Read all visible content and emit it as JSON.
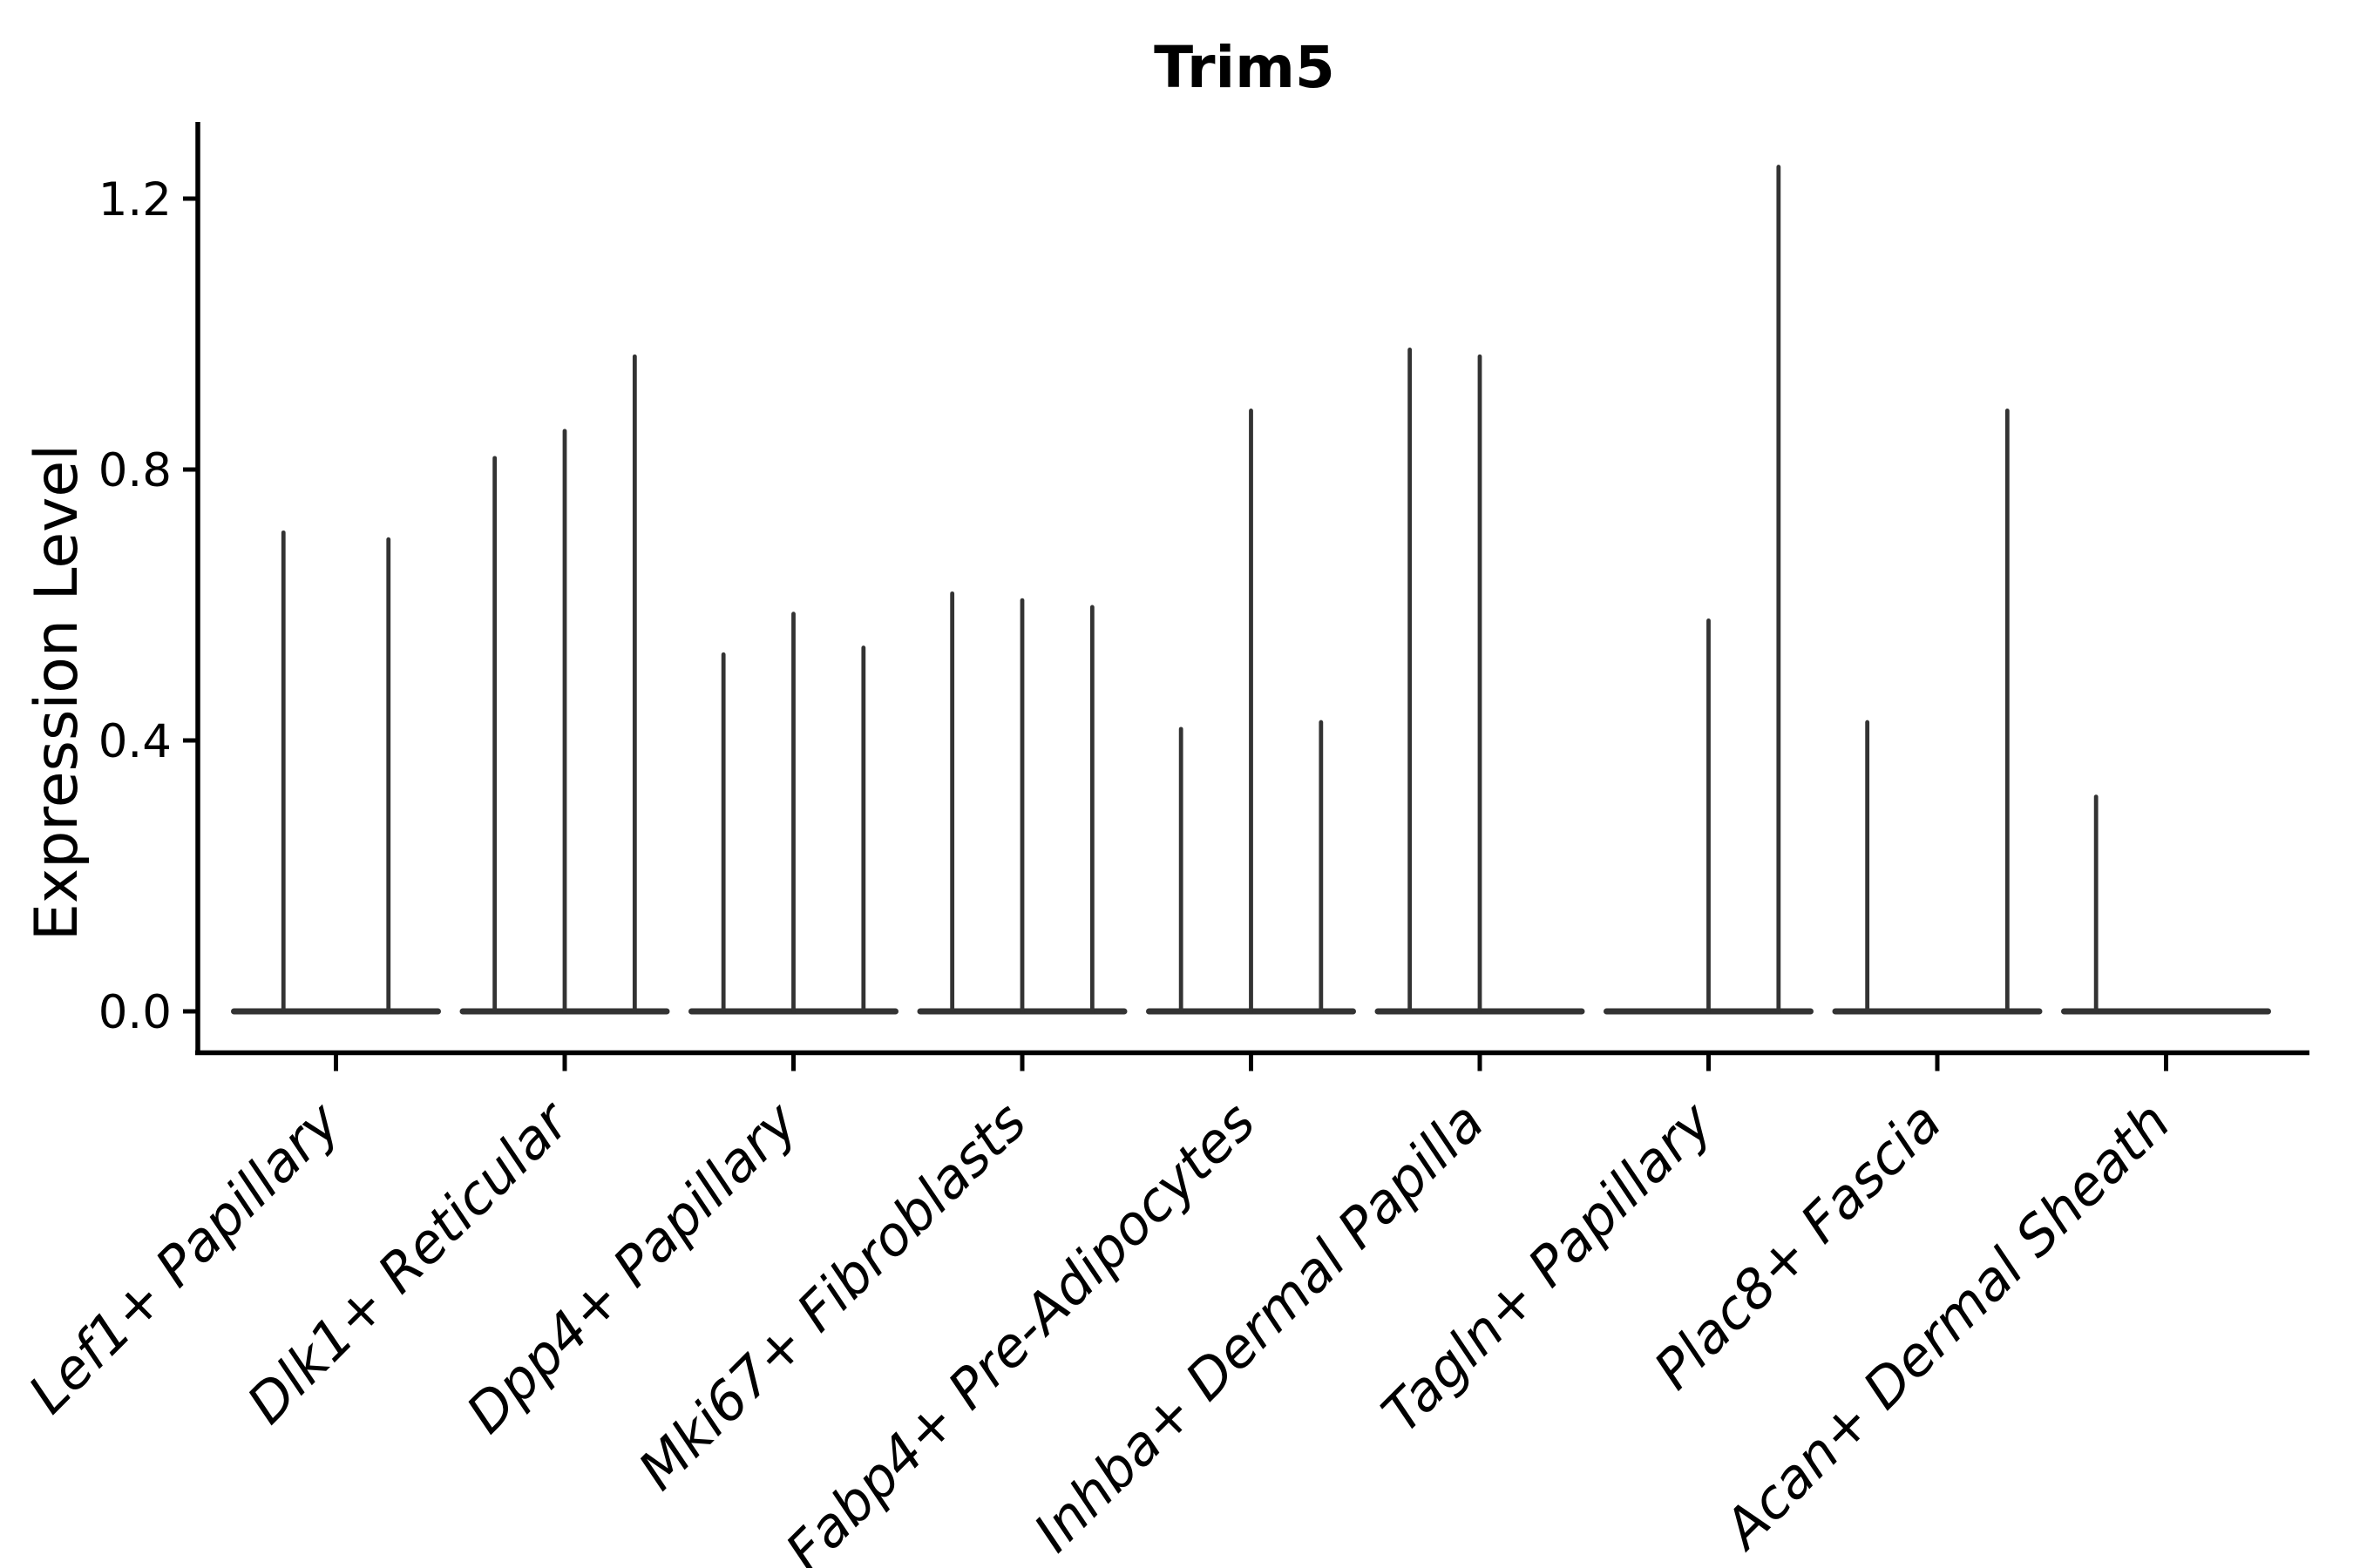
{
  "chart_data": {
    "type": "violin",
    "title": "Trim5",
    "title_bold": true,
    "ylabel": "Expression Level",
    "xlabel": "",
    "yticks": [
      0.0,
      0.4,
      0.8,
      1.2
    ],
    "ytick_labels": [
      "0.0",
      "0.4",
      "0.8",
      "1.2"
    ],
    "ylim": [
      -0.06,
      1.31
    ],
    "grid": false,
    "legend": null,
    "x_tick_label_rotation_deg": 45,
    "x_tick_label_style": "italic",
    "violin_color": "#333333",
    "axis_color": "#000000",
    "background_color": "#ffffff",
    "description": "Violin plot of Trim5 expression; each category shows thin spike violins rising from a flat density base at 0. Values are the maximum expression (spike tip) of each violin within the category; 0 means a flat violin with no spike.",
    "categories": [
      {
        "label": "Lef1+ Papillary",
        "violin_max_values": [
          0.71,
          0.7
        ]
      },
      {
        "label": "Dlk1+ Reticular",
        "violin_max_values": [
          0.82,
          0.86,
          0.97
        ]
      },
      {
        "label": "Dpp4+ Papillary",
        "violin_max_values": [
          0.53,
          0.59,
          0.54
        ]
      },
      {
        "label": "Mki67+ Fibroblasts",
        "violin_max_values": [
          0.62,
          0.61,
          0.6
        ]
      },
      {
        "label": "Fabp4+ Pre-Adipocytes",
        "violin_max_values": [
          0.42,
          0.89,
          0.43
        ]
      },
      {
        "label": "Inhba+ Dermal Papilla",
        "violin_max_values": [
          0.98,
          0.97,
          0.0
        ]
      },
      {
        "label": "Tagln+ Papillary",
        "violin_max_values": [
          0.0,
          0.58,
          1.25
        ]
      },
      {
        "label": "Plac8+ Fascia",
        "violin_max_values": [
          0.43,
          0.0,
          0.89
        ]
      },
      {
        "label": "Acan+ Dermal Sheath",
        "violin_max_values": [
          0.32,
          0.0,
          0.0
        ]
      }
    ]
  }
}
